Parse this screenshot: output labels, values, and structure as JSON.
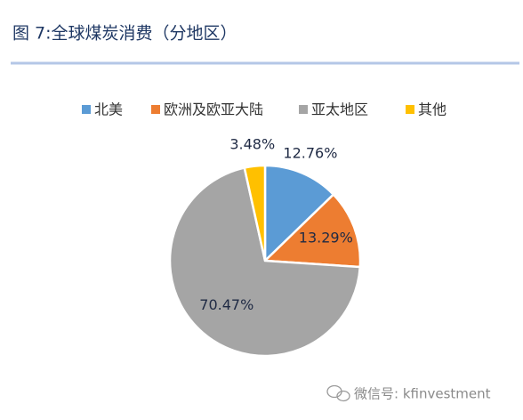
{
  "chart_data": {
    "type": "pie",
    "title": "图 7:全球煤炭消费（分地区）",
    "categories": [
      "北美",
      "欧洲及欧亚大陆",
      "亚太地区",
      "其他"
    ],
    "values": [
      12.76,
      13.29,
      70.47,
      3.48
    ],
    "value_labels": [
      "12.76%",
      "13.29%",
      "70.47%",
      "3.48%"
    ],
    "colors": [
      "#5b9bd5",
      "#ed7d31",
      "#a5a5a5",
      "#ffc000"
    ],
    "legend": "top"
  },
  "watermark": "微信号: kfinvestment"
}
